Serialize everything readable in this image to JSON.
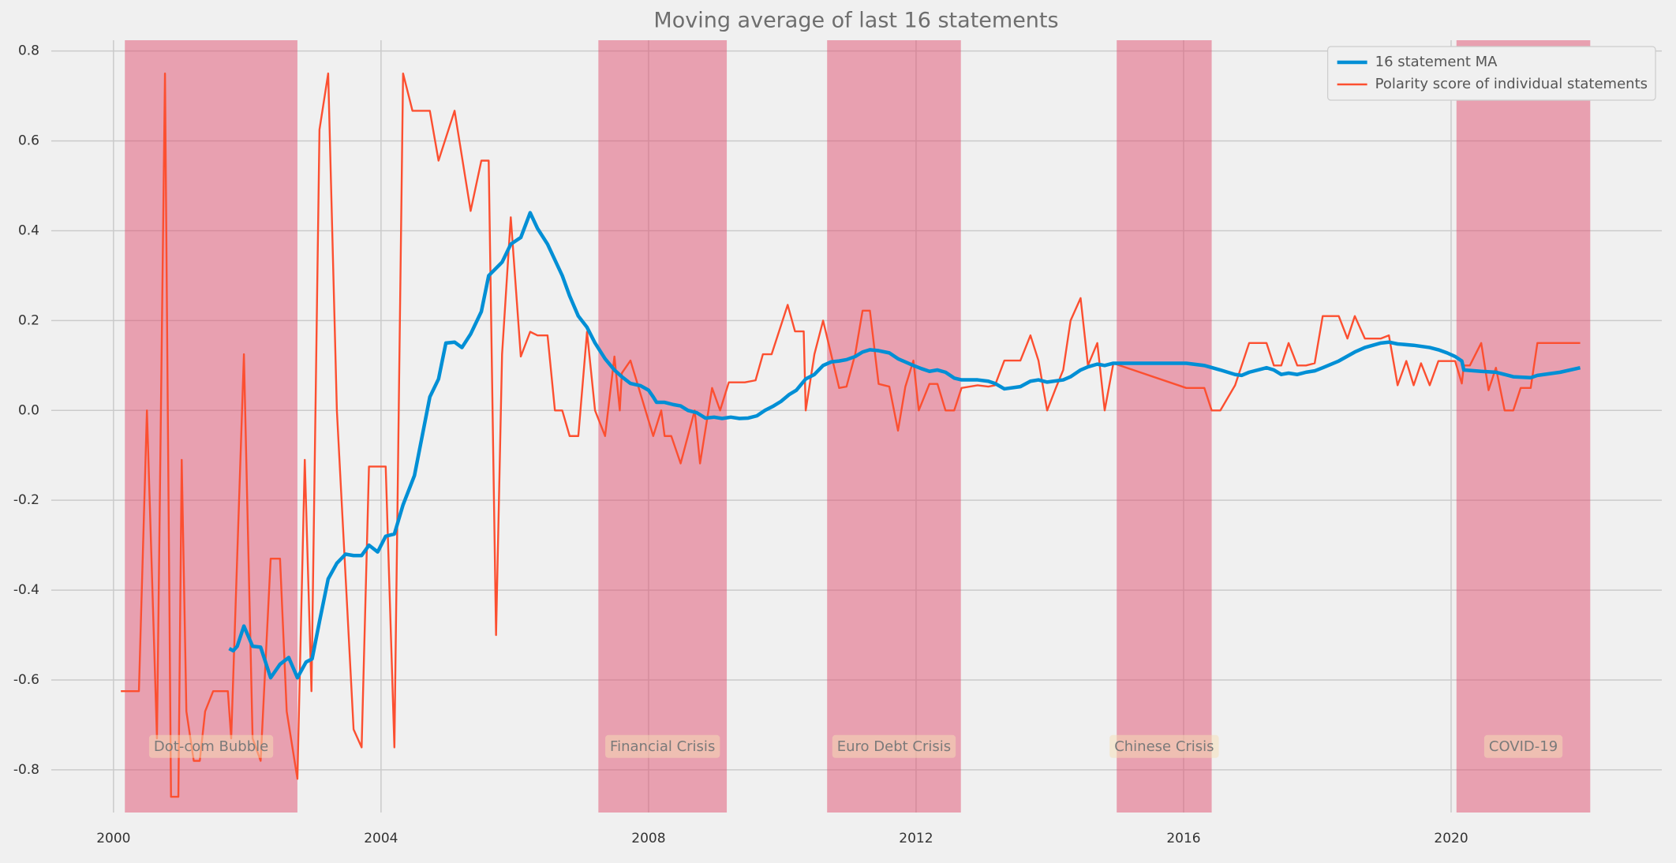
{
  "chart_data": {
    "type": "line",
    "title": "Moving average of last 16 statements",
    "xlim": [
      1999.07,
      2023.15
    ],
    "ylim": [
      -0.895,
      0.824
    ],
    "xticks": [
      2000,
      2004,
      2008,
      2012,
      2016,
      2020
    ],
    "yticks": [
      -0.8,
      -0.6,
      -0.4,
      -0.2,
      {
        "value": 0,
        "label": "0.0"
      },
      0.2,
      0.4,
      0.6,
      0.8
    ],
    "grid": true,
    "legend": "upper right",
    "region_color": "#e0506f",
    "regions": [
      {
        "label": "Dot-com Bubble",
        "start": 2000.17,
        "end": 2002.75
      },
      {
        "label": "Financial Crisis",
        "start": 2007.25,
        "end": 2009.17
      },
      {
        "label": "Euro Debt Crisis",
        "start": 2010.67,
        "end": 2012.67
      },
      {
        "label": "Chinese Crisis",
        "start": 2015.0,
        "end": 2016.42
      },
      {
        "label": "COVID-19",
        "start": 2020.08,
        "end": 2022.08
      }
    ],
    "series": [
      {
        "name": "16 statement MA",
        "color": "#008fd5",
        "x": [
          2001.73,
          2001.79,
          2001.85,
          2001.95,
          2002.08,
          2002.2,
          2002.35,
          2002.49,
          2002.62,
          2002.75,
          2002.88,
          2002.97,
          2003.08,
          2003.21,
          2003.34,
          2003.47,
          2003.59,
          2003.71,
          2003.82,
          2003.95,
          2004.07,
          2004.2,
          2004.33,
          2004.5,
          2004.73,
          2004.86,
          2004.97,
          2005.1,
          2005.21,
          2005.34,
          2005.5,
          2005.61,
          2005.81,
          2005.94,
          2006.09,
          2006.23,
          2006.34,
          2006.49,
          2006.71,
          2006.82,
          2006.95,
          2007.08,
          2007.2,
          2007.35,
          2007.49,
          2007.6,
          2007.73,
          2007.88,
          2008.0,
          2008.07,
          2008.12,
          2008.24,
          2008.37,
          2008.48,
          2008.59,
          2008.72,
          2008.85,
          2008.98,
          2009.1,
          2009.23,
          2009.36,
          2009.49,
          2009.62,
          2009.74,
          2009.87,
          2009.98,
          2010.1,
          2010.21,
          2010.35,
          2010.48,
          2010.61,
          2010.73,
          2010.85,
          2010.96,
          2011.09,
          2011.2,
          2011.31,
          2011.44,
          2011.6,
          2011.73,
          2011.96,
          2012.08,
          2012.2,
          2012.32,
          2012.44,
          2012.57,
          2012.68,
          2012.92,
          2013.08,
          2013.18,
          2013.32,
          2013.56,
          2013.71,
          2013.83,
          2013.96,
          2014.2,
          2014.31,
          2014.46,
          2014.57,
          2014.71,
          2014.82,
          2014.95,
          2016.04,
          2016.31,
          2016.55,
          2016.77,
          2016.87,
          2016.98,
          2017.24,
          2017.35,
          2017.46,
          2017.57,
          2017.7,
          2017.83,
          2017.96,
          2018.08,
          2018.32,
          2018.56,
          2018.71,
          2018.95,
          2019.07,
          2019.2,
          2019.44,
          2019.68,
          2019.81,
          2019.94,
          2020.06,
          2020.16,
          2020.19,
          2020.45,
          2020.67,
          2020.8,
          2020.93,
          2021.19,
          2021.29,
          2021.63,
          2021.93
        ],
        "values": [
          -0.53,
          -0.535,
          -0.525,
          -0.48,
          -0.525,
          -0.527,
          -0.595,
          -0.565,
          -0.55,
          -0.595,
          -0.56,
          -0.553,
          -0.47,
          -0.375,
          -0.34,
          -0.32,
          -0.323,
          -0.323,
          -0.3,
          -0.315,
          -0.28,
          -0.275,
          -0.21,
          -0.145,
          0.03,
          0.07,
          0.15,
          0.152,
          0.14,
          0.17,
          0.22,
          0.3,
          0.33,
          0.37,
          0.385,
          0.44,
          0.405,
          0.37,
          0.3,
          0.255,
          0.21,
          0.185,
          0.15,
          0.115,
          0.09,
          0.075,
          0.06,
          0.055,
          0.045,
          0.03,
          0.018,
          0.018,
          0.013,
          0.01,
          0,
          -0.005,
          -0.017,
          -0.015,
          -0.018,
          -0.015,
          -0.018,
          -0.017,
          -0.012,
          0,
          0.01,
          0.02,
          0.035,
          0.045,
          0.07,
          0.08,
          0.1,
          0.108,
          0.11,
          0.113,
          0.12,
          0.13,
          0.135,
          0.133,
          0.128,
          0.115,
          0.1,
          0.093,
          0.087,
          0.09,
          0.085,
          0.072,
          0.068,
          0.068,
          0.065,
          0.06,
          0.048,
          0.053,
          0.065,
          0.068,
          0.063,
          0.068,
          0.075,
          0.09,
          0.097,
          0.103,
          0.1,
          0.105,
          0.105,
          0.1,
          0.09,
          0.08,
          0.078,
          0.085,
          0.095,
          0.09,
          0.08,
          0.083,
          0.08,
          0.085,
          0.088,
          0.095,
          0.11,
          0.13,
          0.14,
          0.15,
          0.152,
          0.148,
          0.145,
          0.14,
          0.135,
          0.128,
          0.12,
          0.11,
          0.09,
          0.087,
          0.085,
          0.08,
          0.075,
          0.073,
          0.078,
          0.085,
          0.095
        ]
      },
      {
        "name": "Polarity score of individual statements",
        "color": "#fc4f30",
        "x": [
          2000.11,
          2000.38,
          2000.5,
          2000.65,
          2000.77,
          2000.86,
          2000.97,
          2001.02,
          2001.09,
          2001.2,
          2001.29,
          2001.37,
          2001.49,
          2001.71,
          2001.76,
          2001.95,
          2002.08,
          2002.2,
          2002.35,
          2002.49,
          2002.59,
          2002.75,
          2002.86,
          2002.96,
          2003.08,
          2003.21,
          2003.34,
          2003.59,
          2003.71,
          2003.82,
          2004.07,
          2004.2,
          2004.33,
          2004.47,
          2004.73,
          2004.86,
          2005.1,
          2005.34,
          2005.5,
          2005.61,
          2005.72,
          2005.81,
          2005.94,
          2006.09,
          2006.23,
          2006.34,
          2006.49,
          2006.6,
          2006.71,
          2006.82,
          2006.95,
          2007.08,
          2007.2,
          2007.35,
          2007.49,
          2007.57,
          2007.6,
          2007.73,
          2008.07,
          2008.19,
          2008.24,
          2008.34,
          2008.48,
          2008.69,
          2008.77,
          2008.95,
          2009.07,
          2009.2,
          2009.44,
          2009.6,
          2009.71,
          2009.84,
          2010.08,
          2010.19,
          2010.32,
          2010.35,
          2010.48,
          2010.61,
          2010.85,
          2010.96,
          2011.09,
          2011.2,
          2011.31,
          2011.44,
          2011.6,
          2011.73,
          2011.84,
          2011.96,
          2012.04,
          2012.2,
          2012.32,
          2012.44,
          2012.57,
          2012.68,
          2012.92,
          2013.08,
          2013.18,
          2013.32,
          2013.56,
          2013.71,
          2013.83,
          2013.96,
          2014.09,
          2014.2,
          2014.31,
          2014.46,
          2014.57,
          2014.71,
          2014.82,
          2014.95,
          2016.04,
          2016.31,
          2016.42,
          2016.55,
          2016.77,
          2016.98,
          2017.24,
          2017.35,
          2017.46,
          2017.57,
          2017.7,
          2017.83,
          2017.96,
          2018.08,
          2018.32,
          2018.45,
          2018.56,
          2018.71,
          2018.95,
          2019.07,
          2019.2,
          2019.33,
          2019.44,
          2019.55,
          2019.68,
          2019.81,
          2019.94,
          2020.06,
          2020.16,
          2020.19,
          2020.28,
          2020.45,
          2020.56,
          2020.67,
          2020.8,
          2020.93,
          2021.04,
          2021.19,
          2021.29,
          2021.93
        ],
        "values": [
          -0.625,
          -0.625,
          0,
          -0.73,
          0.75,
          -0.86,
          -0.86,
          -0.11,
          -0.67,
          -0.78,
          -0.78,
          -0.67,
          -0.625,
          -0.625,
          -0.73,
          0.125,
          -0.73,
          -0.78,
          -0.33,
          -0.33,
          -0.67,
          -0.82,
          -0.11,
          -0.625,
          0.625,
          0.75,
          0,
          -0.71,
          -0.75,
          -0.125,
          -0.125,
          -0.75,
          0.75,
          0.667,
          0.667,
          0.556,
          0.667,
          0.444,
          0.556,
          0.556,
          -0.5,
          0.125,
          0.43,
          0.12,
          0.175,
          0.167,
          0.167,
          0,
          0,
          -0.057,
          -0.057,
          0.175,
          0,
          -0.057,
          0.12,
          0,
          0.083,
          0.111,
          -0.057,
          0,
          -0.057,
          -0.057,
          -0.118,
          0,
          -0.118,
          0.05,
          0,
          0.0625,
          0.0625,
          0.067,
          0.125,
          0.125,
          0.235,
          0.176,
          0.176,
          0,
          0.125,
          0.2,
          0.05,
          0.053,
          0.125,
          0.222,
          0.222,
          0.059,
          0.053,
          -0.045,
          0.053,
          0.111,
          0,
          0.059,
          0.059,
          0,
          0,
          0.05,
          0.056,
          0.053,
          0.056,
          0.111,
          0.111,
          0.167,
          0.111,
          0,
          0.05,
          0.09,
          0.2,
          0.25,
          0.1,
          0.15,
          0,
          0.105,
          0.05,
          0.05,
          0,
          0,
          0.056,
          0.15,
          0.15,
          0.1,
          0.1,
          0.15,
          0.1,
          0.1,
          0.105,
          0.21,
          0.21,
          0.16,
          0.21,
          0.16,
          0.16,
          0.167,
          0.056,
          0.11,
          0.056,
          0.105,
          0.056,
          0.11,
          0.11,
          0.11,
          0.06,
          0.1,
          0.1,
          0.15,
          0.045,
          0.095,
          0,
          0,
          0.05,
          0.05,
          0.15,
          0.15
        ]
      }
    ]
  }
}
